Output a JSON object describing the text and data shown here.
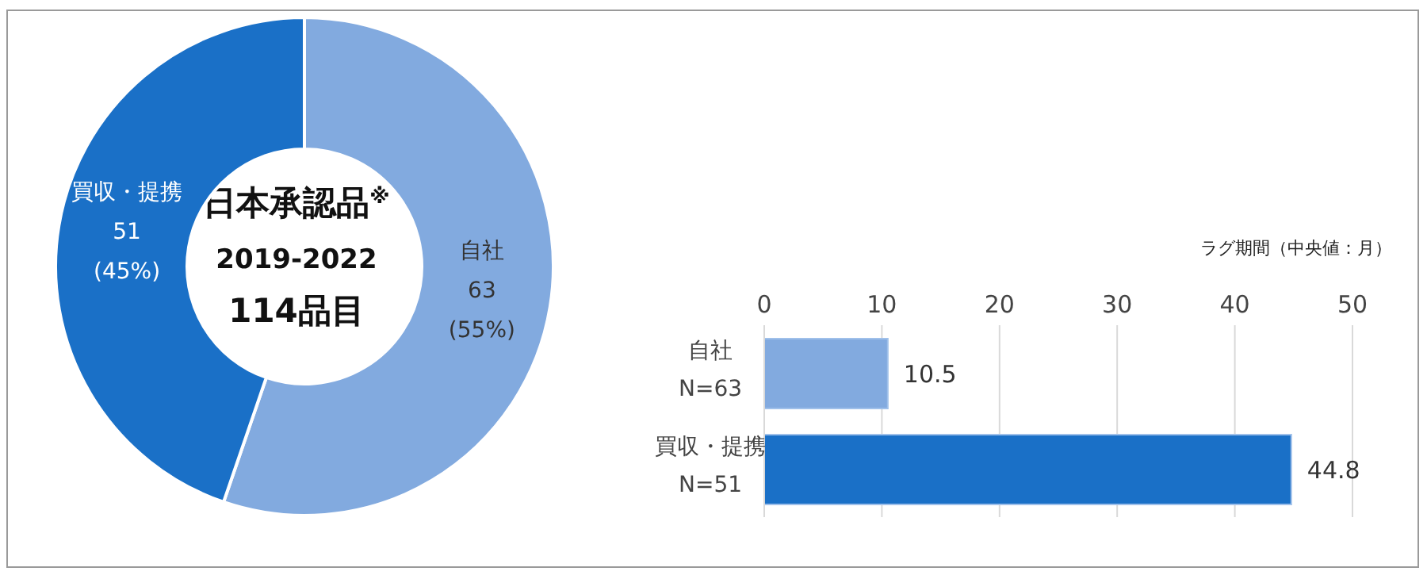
{
  "chart_data": [
    {
      "type": "donut",
      "title": "日本承認品$^{※}$",
      "annotations": [
        "2019-2022",
        "114品目"
      ],
      "categories": [
        "自社",
        "買収・提携"
      ],
      "values": [
        63,
        51
      ],
      "value_labels": [
        "63 (55%)",
        "51 (45%)"
      ],
      "colors": [
        "#82aadf",
        "#1a70c7"
      ],
      "legend": false
    },
    {
      "type": "bar",
      "orientation": "horizontal",
      "xlabel": "ラグ期間（中央値：月）",
      "categories": [
        "自社\nN=63",
        "買収・提携\nN=51"
      ],
      "values": [
        10.5,
        44.8
      ],
      "colors": [
        "#82aadf",
        "#1a70c7"
      ],
      "xlim": [
        0,
        50
      ],
      "xticks": [
        0,
        10,
        20,
        30,
        40,
        50
      ],
      "grid": "x",
      "data_labels": true,
      "legend": false
    }
  ]
}
